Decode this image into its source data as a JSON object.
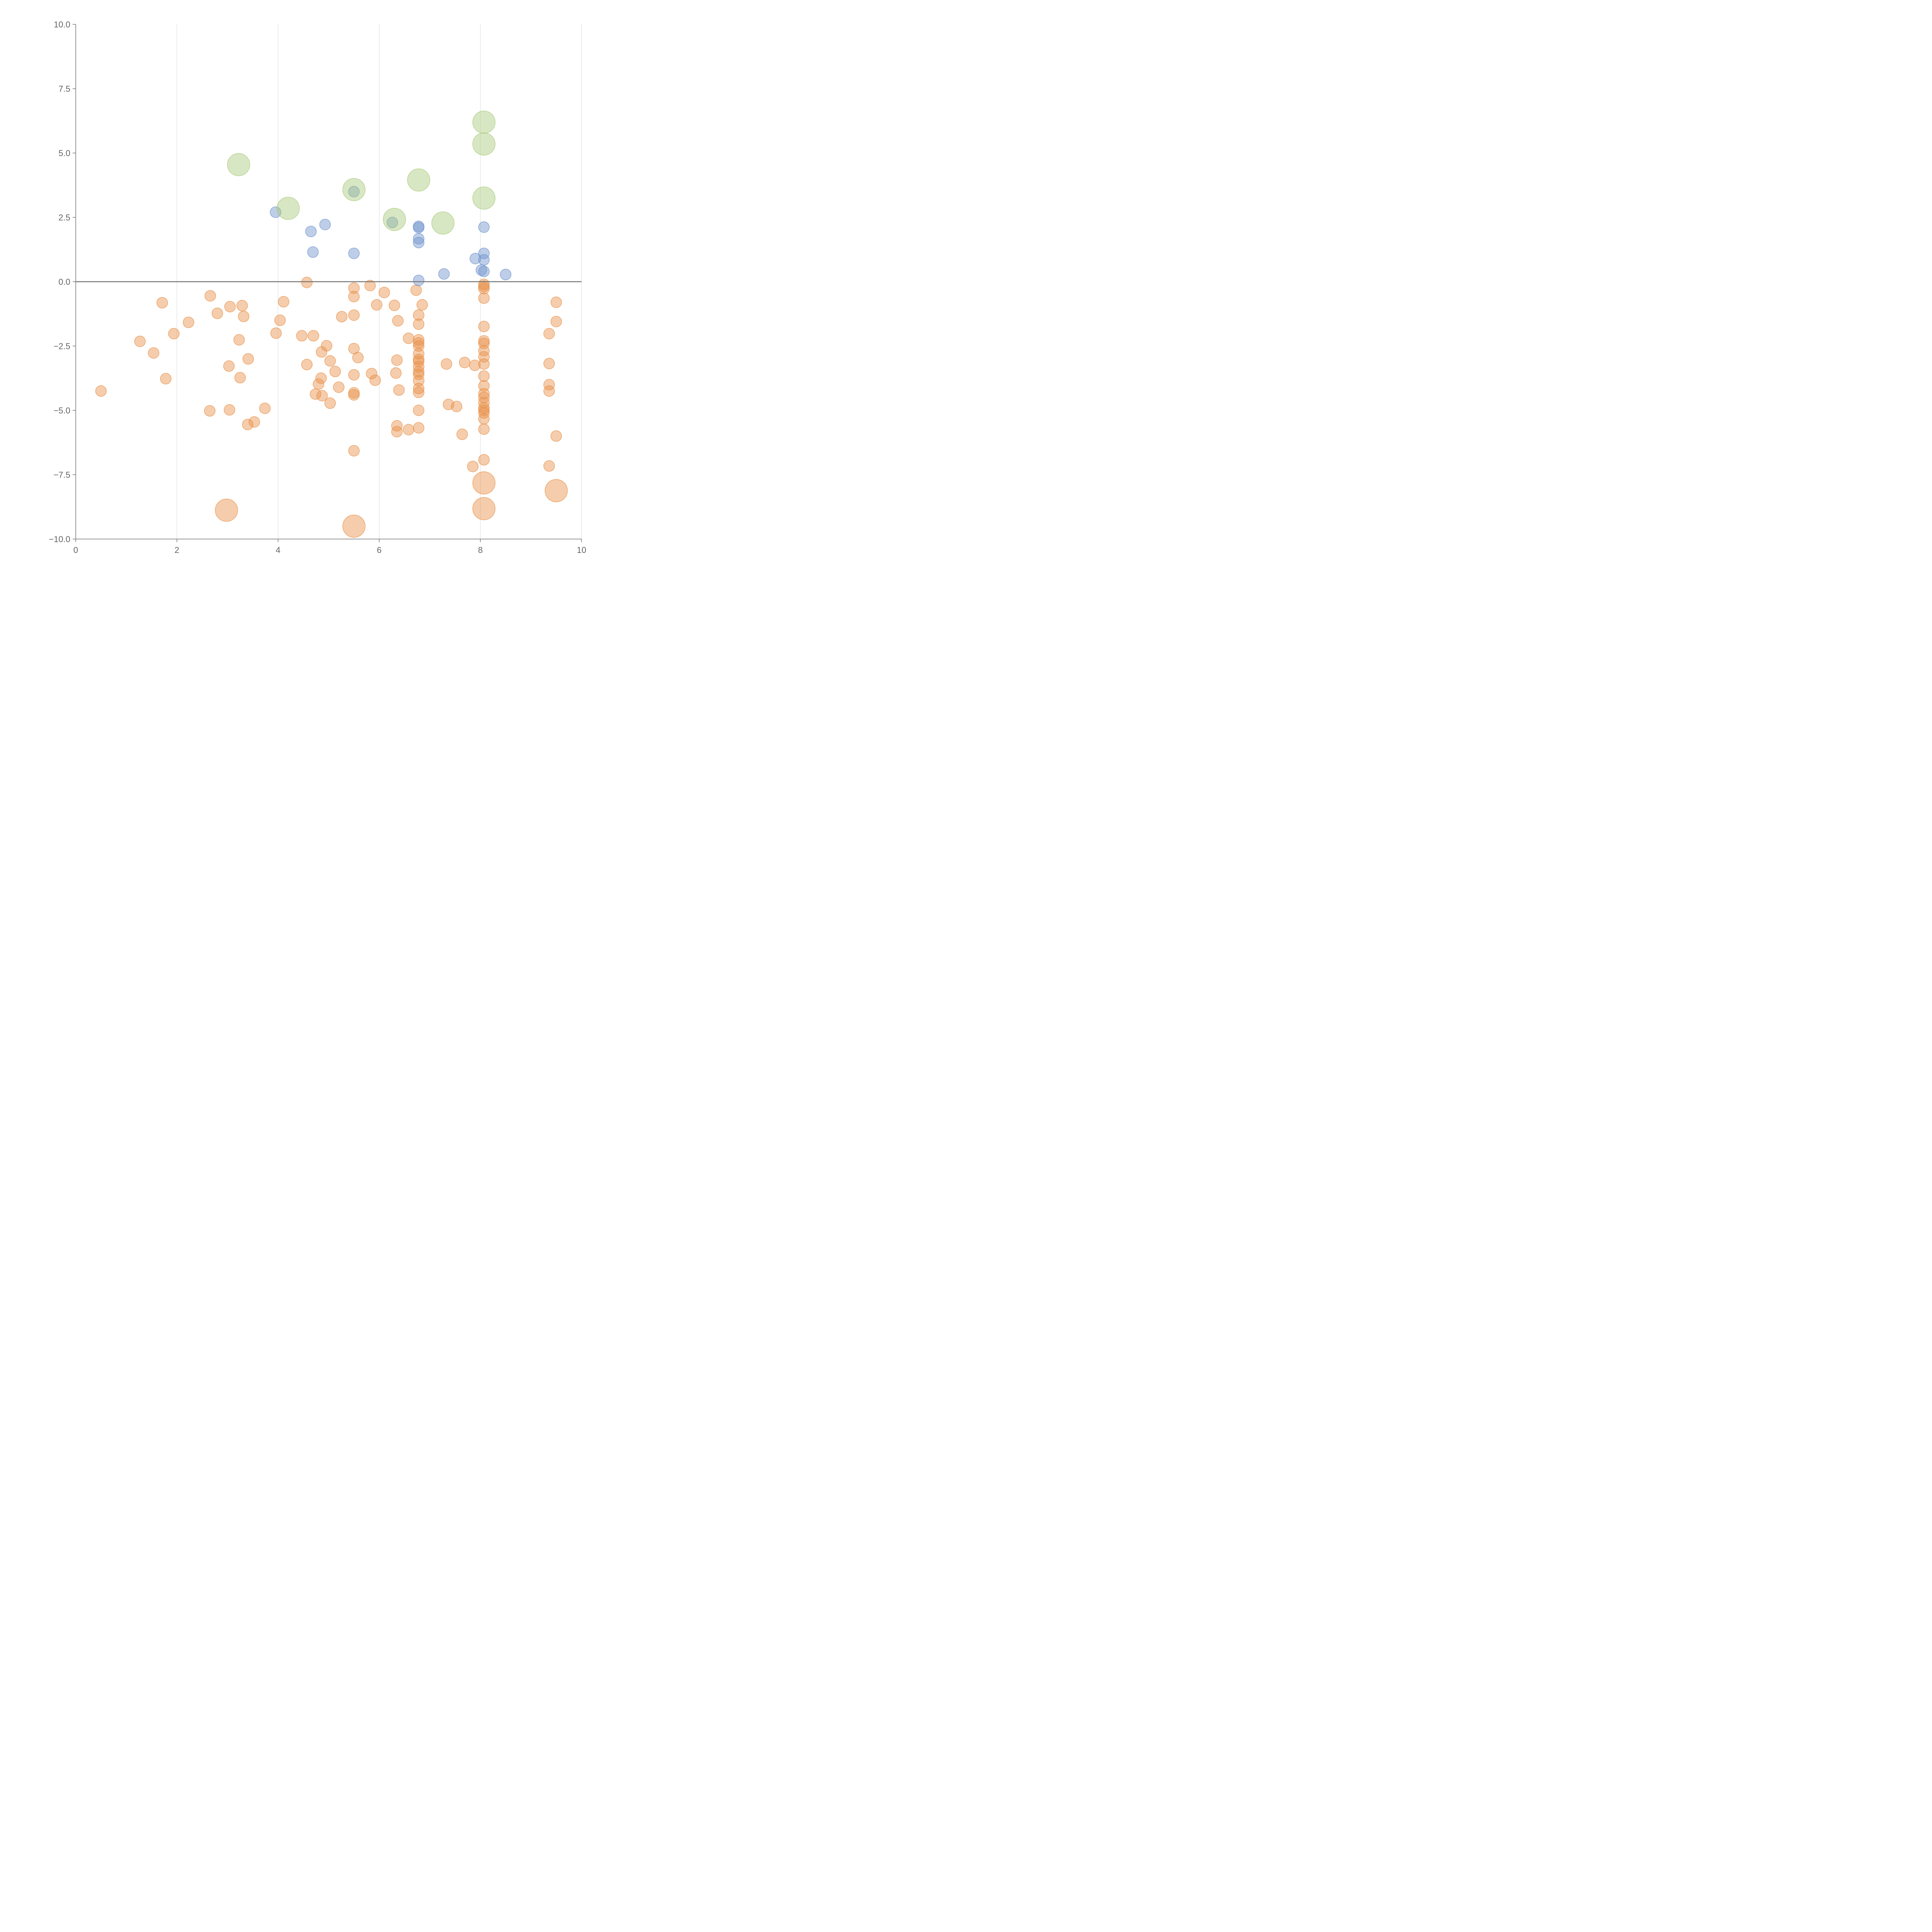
{
  "chart_data": {
    "type": "scatter",
    "title": "",
    "xlabel": "",
    "ylabel": "",
    "xlim": [
      0,
      10
    ],
    "ylim": [
      -10,
      10
    ],
    "x_ticks": [
      0,
      2,
      4,
      6,
      8,
      10
    ],
    "y_ticks": [
      -10.0,
      -7.5,
      -5.0,
      -2.5,
      0.0,
      2.5,
      5.0,
      7.5,
      10.0
    ],
    "x_tick_labels": [
      "0",
      "2",
      "4",
      "6",
      "8",
      "10"
    ],
    "y_tick_labels": [
      "−10.0",
      "−7.5",
      "−5.0",
      "−2.5",
      "0.0",
      "2.5",
      "5.0",
      "7.5",
      "10.0"
    ],
    "vertical_grid": true,
    "horizontal_grid": false,
    "zero_line": true,
    "colors": {
      "orange": "#e8914a",
      "blue": "#6f93cc",
      "green": "#a8c97a",
      "axis": "#777777",
      "grid": "#d9d9d9",
      "zero_line": "#777777"
    },
    "series": [
      {
        "color_key": "orange",
        "points": [
          [
            0.5,
            -4.25,
            1
          ],
          [
            1.27,
            -2.32,
            1
          ],
          [
            1.54,
            -2.77,
            1
          ],
          [
            1.71,
            -0.82,
            1
          ],
          [
            1.78,
            -3.77,
            1
          ],
          [
            1.94,
            -2.02,
            1
          ],
          [
            2.23,
            -1.58,
            1
          ],
          [
            2.65,
            -5.02,
            1
          ],
          [
            2.66,
            -0.55,
            1
          ],
          [
            2.8,
            -1.23,
            1
          ],
          [
            2.98,
            -8.88,
            2
          ],
          [
            3.03,
            -3.28,
            1
          ],
          [
            3.04,
            -4.98,
            1
          ],
          [
            3.05,
            -0.97,
            1
          ],
          [
            3.23,
            -2.26,
            1
          ],
          [
            3.25,
            -3.73,
            1
          ],
          [
            3.29,
            -0.93,
            1
          ],
          [
            3.32,
            -1.35,
            1
          ],
          [
            3.4,
            -5.55,
            1
          ],
          [
            3.41,
            -3.0,
            1
          ],
          [
            3.53,
            -5.45,
            1
          ],
          [
            3.74,
            -4.92,
            1
          ],
          [
            3.96,
            -2.0,
            1
          ],
          [
            4.04,
            -1.5,
            1
          ],
          [
            4.11,
            -0.78,
            1
          ],
          [
            4.47,
            -2.1,
            1
          ],
          [
            4.57,
            -3.22,
            1
          ],
          [
            4.57,
            -0.03,
            1
          ],
          [
            4.7,
            -2.1,
            1
          ],
          [
            4.74,
            -4.37,
            1
          ],
          [
            4.8,
            -3.98,
            1
          ],
          [
            4.85,
            -3.75,
            1
          ],
          [
            4.86,
            -2.73,
            1
          ],
          [
            4.87,
            -4.43,
            1
          ],
          [
            4.96,
            -2.49,
            1
          ],
          [
            5.03,
            -3.08,
            1
          ],
          [
            5.03,
            -4.72,
            1
          ],
          [
            5.13,
            -3.49,
            1
          ],
          [
            5.2,
            -4.1,
            1
          ],
          [
            5.26,
            -1.36,
            1
          ],
          [
            5.5,
            -9.5,
            2
          ],
          [
            5.5,
            -6.57,
            1
          ],
          [
            5.5,
            -4.4,
            1
          ],
          [
            5.5,
            -4.32,
            1
          ],
          [
            5.5,
            -3.62,
            1
          ],
          [
            5.5,
            -2.6,
            1
          ],
          [
            5.5,
            -1.3,
            1
          ],
          [
            5.5,
            -0.58,
            1
          ],
          [
            5.5,
            -0.25,
            1
          ],
          [
            5.58,
            -2.95,
            1
          ],
          [
            5.82,
            -0.15,
            1
          ],
          [
            5.85,
            -3.57,
            1
          ],
          [
            5.92,
            -3.83,
            1
          ],
          [
            5.95,
            -0.9,
            1
          ],
          [
            6.1,
            -0.42,
            1
          ],
          [
            6.3,
            -0.92,
            1
          ],
          [
            6.33,
            -3.55,
            1
          ],
          [
            6.35,
            -3.05,
            1
          ],
          [
            6.35,
            -5.83,
            1
          ],
          [
            6.35,
            -5.6,
            1
          ],
          [
            6.37,
            -1.52,
            1
          ],
          [
            6.39,
            -4.21,
            1
          ],
          [
            6.58,
            -2.2,
            1
          ],
          [
            6.58,
            -5.75,
            1
          ],
          [
            6.73,
            -0.33,
            1
          ],
          [
            6.78,
            -5.68,
            1
          ],
          [
            6.78,
            -5.0,
            1
          ],
          [
            6.78,
            -4.3,
            1
          ],
          [
            6.78,
            -4.15,
            1
          ],
          [
            6.78,
            -3.85,
            1
          ],
          [
            6.78,
            -3.6,
            1
          ],
          [
            6.78,
            -3.5,
            1
          ],
          [
            6.78,
            -3.3,
            1
          ],
          [
            6.78,
            -3.1,
            1
          ],
          [
            6.78,
            -3.02,
            1
          ],
          [
            6.78,
            -2.8,
            1
          ],
          [
            6.78,
            -2.5,
            1
          ],
          [
            6.78,
            -2.38,
            1
          ],
          [
            6.78,
            -2.26,
            1
          ],
          [
            6.78,
            -1.65,
            1
          ],
          [
            6.78,
            -1.3,
            1
          ],
          [
            6.85,
            -0.9,
            1
          ],
          [
            7.33,
            -3.2,
            1
          ],
          [
            7.37,
            -4.77,
            1
          ],
          [
            7.53,
            -4.85,
            1
          ],
          [
            7.64,
            -5.93,
            1
          ],
          [
            7.69,
            -3.14,
            1
          ],
          [
            7.85,
            -7.18,
            1
          ],
          [
            7.89,
            -3.25,
            1
          ],
          [
            8.07,
            -8.82,
            2
          ],
          [
            8.07,
            -7.82,
            2
          ],
          [
            8.07,
            -6.92,
            1
          ],
          [
            8.07,
            -5.73,
            1
          ],
          [
            8.07,
            -5.33,
            1
          ],
          [
            8.07,
            -5.1,
            1
          ],
          [
            8.07,
            -5.0,
            1
          ],
          [
            8.07,
            -4.9,
            1
          ],
          [
            8.07,
            -4.7,
            1
          ],
          [
            8.07,
            -4.5,
            1
          ],
          [
            8.07,
            -4.35,
            1
          ],
          [
            8.07,
            -4.05,
            1
          ],
          [
            8.07,
            -3.67,
            1
          ],
          [
            8.07,
            -3.2,
            1
          ],
          [
            8.07,
            -2.92,
            1
          ],
          [
            8.07,
            -2.68,
            1
          ],
          [
            8.07,
            -2.4,
            1
          ],
          [
            8.07,
            -2.3,
            1
          ],
          [
            8.07,
            -1.74,
            1
          ],
          [
            8.07,
            -0.64,
            1
          ],
          [
            8.07,
            -0.27,
            1
          ],
          [
            8.07,
            -0.18,
            1
          ],
          [
            8.07,
            -0.1,
            1
          ],
          [
            9.36,
            -7.16,
            1
          ],
          [
            9.36,
            -4.25,
            1
          ],
          [
            9.36,
            -4.0,
            1
          ],
          [
            9.36,
            -3.18,
            1
          ],
          [
            9.36,
            -2.02,
            1
          ],
          [
            9.5,
            -8.12,
            2
          ],
          [
            9.5,
            -6.0,
            1
          ],
          [
            9.5,
            -1.55,
            1
          ],
          [
            9.5,
            -0.8,
            1
          ]
        ]
      },
      {
        "color_key": "blue",
        "points": [
          [
            3.95,
            2.7,
            1
          ],
          [
            4.65,
            1.95,
            1
          ],
          [
            4.69,
            1.15,
            1
          ],
          [
            4.93,
            2.22,
            1
          ],
          [
            5.5,
            3.5,
            1
          ],
          [
            5.5,
            1.1,
            1
          ],
          [
            6.26,
            2.3,
            1
          ],
          [
            6.78,
            2.15,
            1
          ],
          [
            6.78,
            2.1,
            1
          ],
          [
            6.78,
            1.67,
            1
          ],
          [
            6.78,
            1.52,
            1
          ],
          [
            6.78,
            0.05,
            1
          ],
          [
            7.28,
            0.3,
            1
          ],
          [
            7.9,
            0.9,
            1
          ],
          [
            8.02,
            0.45,
            1
          ],
          [
            8.07,
            2.12,
            1
          ],
          [
            8.07,
            1.1,
            1
          ],
          [
            8.07,
            0.85,
            1
          ],
          [
            8.07,
            0.4,
            1
          ],
          [
            8.5,
            0.28,
            1
          ]
        ]
      },
      {
        "color_key": "green",
        "points": [
          [
            3.22,
            4.55,
            2
          ],
          [
            4.2,
            2.85,
            2
          ],
          [
            5.5,
            3.58,
            2
          ],
          [
            6.3,
            2.42,
            2
          ],
          [
            6.78,
            3.95,
            2
          ],
          [
            7.26,
            2.28,
            2
          ],
          [
            8.07,
            6.2,
            2
          ],
          [
            8.07,
            5.35,
            2
          ],
          [
            8.07,
            3.25,
            2
          ]
        ]
      }
    ]
  }
}
